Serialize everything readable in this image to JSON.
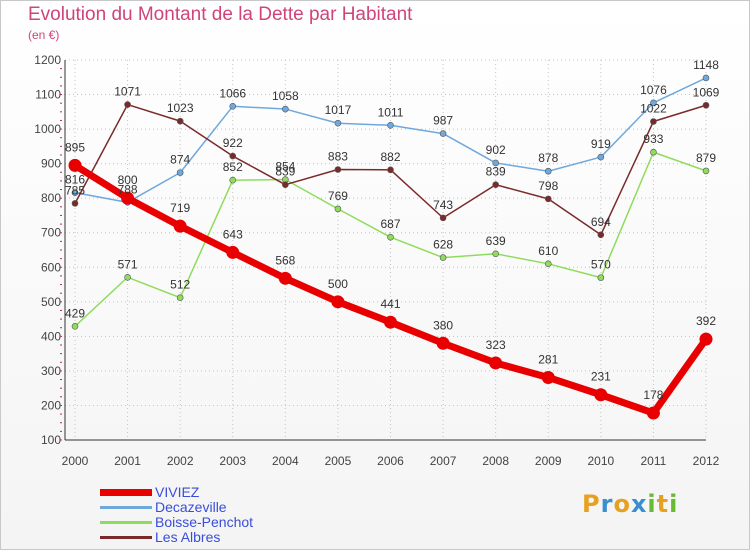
{
  "title": "Evolution du Montant de la Dette par Habitant",
  "subtitle": "(en €)",
  "colors": {
    "background": "#ffffff",
    "title": "#d0447a",
    "legend_text": "#3a4dd8",
    "grid": "#c4c4c4",
    "axis": "#333333"
  },
  "logo": {
    "letters": [
      "P",
      "r",
      "o",
      "x",
      "i",
      "t",
      "i"
    ],
    "colors": [
      "#e8a020",
      "#3a8fd0",
      "#e8a020",
      "#3a8fd0",
      "#66bb33",
      "#e8a020",
      "#66bb33"
    ]
  },
  "chart_data": {
    "type": "line",
    "title": "Evolution du Montant de la Dette par Habitant",
    "subtitle": "(en €)",
    "xlabel": "",
    "ylabel": "",
    "x": [
      "2000",
      "2001",
      "2002",
      "2003",
      "2004",
      "2005",
      "2006",
      "2007",
      "2008",
      "2009",
      "2010",
      "2011",
      "2012"
    ],
    "ylim": [
      100,
      1200
    ],
    "yticks": [
      "100",
      "200",
      "300",
      "400",
      "500",
      "600",
      "700",
      "800",
      "900",
      "1000",
      "1100",
      "1200"
    ],
    "grid": true,
    "legend_position": "bottom-left",
    "series": [
      {
        "name": "VIVIEZ",
        "color": "#e80000",
        "line_width": 7,
        "marker_size": 6.5,
        "values": [
          895,
          800,
          719,
          643,
          568,
          500,
          441,
          380,
          323,
          281,
          231,
          178,
          392
        ],
        "labels": [
          "895",
          "800",
          "719",
          "643",
          "568",
          "500",
          "441",
          "380",
          "323",
          "281",
          "231",
          "178",
          "392"
        ]
      },
      {
        "name": "Decazeville",
        "color": "#6fa8dc",
        "line_width": 1.5,
        "marker_size": 3,
        "values": [
          816,
          788,
          874,
          1066,
          1058,
          1017,
          1011,
          987,
          902,
          878,
          919,
          1076,
          1148
        ],
        "labels": [
          "816",
          "788",
          "874",
          "1066",
          "1058",
          "1017",
          "1011",
          "987",
          "902",
          "878",
          "919",
          "1076",
          "1148"
        ]
      },
      {
        "name": "Boisse-Penchot",
        "color": "#8fdc5c",
        "line_width": 1.5,
        "marker_size": 3,
        "values": [
          429,
          571,
          512,
          852,
          854,
          769,
          687,
          628,
          639,
          610,
          570,
          933,
          879
        ],
        "labels": [
          "429",
          "571",
          "512",
          "852",
          "854",
          "769",
          "687",
          "628",
          "639",
          "610",
          "570",
          "933",
          "879"
        ]
      },
      {
        "name": "Les Albres",
        "color": "#7a2a2a",
        "line_width": 1.5,
        "marker_size": 3,
        "values": [
          785,
          1071,
          1023,
          922,
          839,
          883,
          882,
          743,
          839,
          798,
          694,
          1022,
          1069
        ],
        "labels": [
          "785",
          "1071",
          "1023",
          "922",
          "839",
          "883",
          "882",
          "743",
          "839",
          "798",
          "694",
          "1022",
          "1069"
        ]
      }
    ]
  }
}
